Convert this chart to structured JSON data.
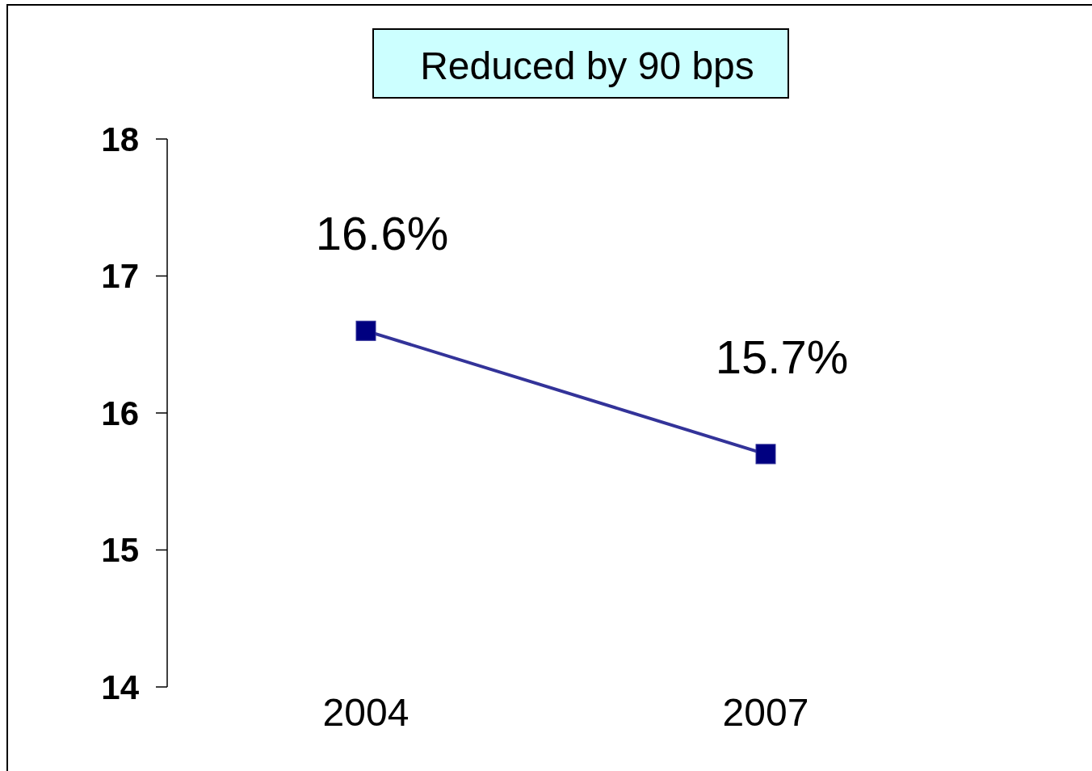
{
  "chart_data": {
    "type": "line",
    "title": "Reduced by 90 bps",
    "categories": [
      "2004",
      "2007"
    ],
    "series": [
      {
        "color": "#333399",
        "values": [
          16.6,
          15.7
        ],
        "value_labels": [
          "16.6%",
          "15.7%"
        ]
      }
    ],
    "ylim": [
      14,
      18
    ],
    "yticks": [
      14,
      15,
      16,
      17,
      18
    ],
    "marker": "square",
    "line_style": "solid"
  }
}
